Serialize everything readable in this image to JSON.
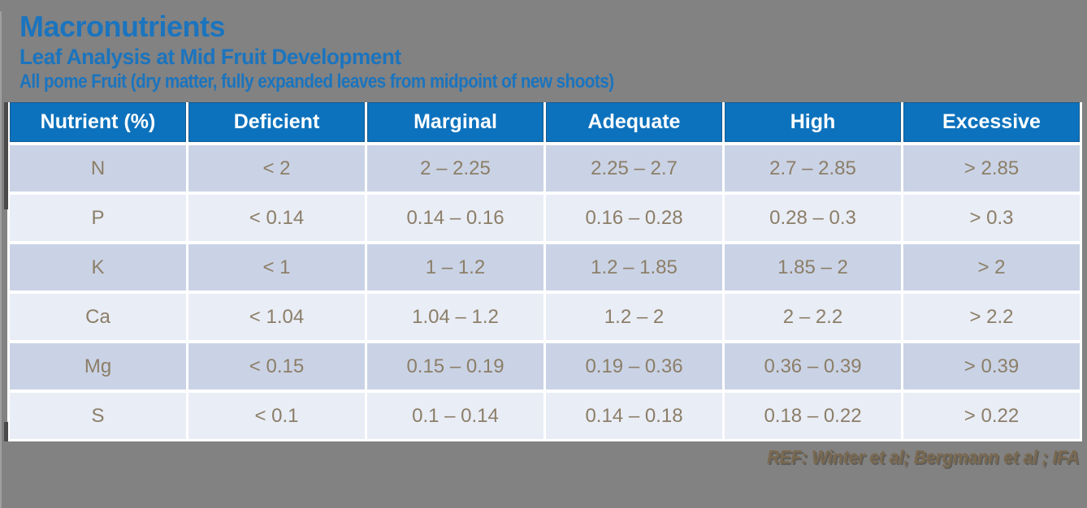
{
  "header": {
    "title": "Macronutrients",
    "subtitle": "Leaf Analysis at Mid Fruit Development",
    "description": "All pome Fruit (dry matter, fully expanded leaves from midpoint of new shoots)"
  },
  "table": {
    "columns": [
      "Nutrient (%)",
      "Deficient",
      "Marginal",
      "Adequate",
      "High",
      "Excessive"
    ],
    "rows": [
      {
        "nutrient": "N",
        "values": [
          "< 2",
          "2 – 2.25",
          "2.25 – 2.7",
          "2.7 – 2.85",
          "> 2.85"
        ]
      },
      {
        "nutrient": "P",
        "values": [
          "< 0.14",
          "0.14 – 0.16",
          "0.16 – 0.28",
          "0.28 – 0.3",
          "> 0.3"
        ]
      },
      {
        "nutrient": "K",
        "values": [
          "< 1",
          "1 – 1.2",
          "1.2 – 1.85",
          "1.85 – 2",
          "> 2"
        ]
      },
      {
        "nutrient": "Ca",
        "values": [
          "< 1.04",
          "1.04 – 1.2",
          "1.2 – 2",
          "2 – 2.2",
          "> 2.2"
        ]
      },
      {
        "nutrient": "Mg",
        "values": [
          "< 0.15",
          "0.15 – 0.19",
          "0.19 – 0.36",
          "0.36 – 0.39",
          "> 0.39"
        ]
      },
      {
        "nutrient": "S",
        "values": [
          "< 0.1",
          "0.1 – 0.14",
          "0.14 – 0.18",
          "0.18 – 0.22",
          "> 0.22"
        ]
      }
    ]
  },
  "footer": {
    "reference": "REF: Winter et al; Bergmann et al ; IFA"
  },
  "colors": {
    "slide_bg": "#828282",
    "title_blue": "#1B74BE",
    "header_bg": "#0D72BD",
    "row_dark": "#CAD3E5",
    "row_light": "#E9EDF6",
    "cell_text": "#8C7E68",
    "footer_text": "#7A6950"
  }
}
